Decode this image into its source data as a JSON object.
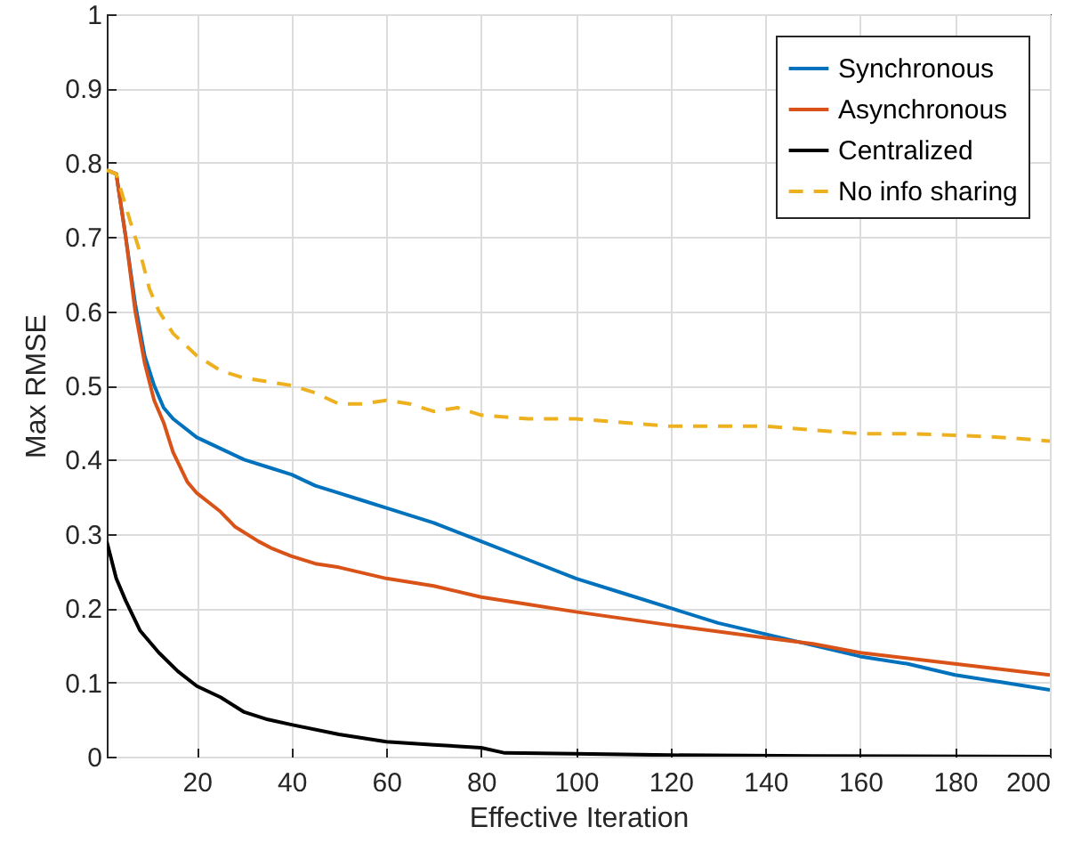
{
  "chart_data": {
    "type": "line",
    "xlabel": "Effective Iteration",
    "ylabel": "Max RMSE",
    "xlim": [
      1,
      200
    ],
    "xticks": [
      20,
      40,
      60,
      80,
      100,
      120,
      140,
      160,
      180,
      200
    ],
    "ylim": [
      0,
      1
    ],
    "yticks": [
      0,
      0.1,
      0.2,
      0.3,
      0.4,
      0.5,
      0.6,
      0.7,
      0.8,
      0.9,
      1
    ],
    "grid": true,
    "legend": "top right",
    "series": [
      {
        "name": "Synchronous",
        "color": "#0072bd",
        "line_style": "solid",
        "x": [
          1,
          3,
          5,
          7,
          9,
          11,
          13,
          15,
          20,
          25,
          30,
          35,
          40,
          45,
          50,
          55,
          60,
          70,
          80,
          90,
          100,
          110,
          120,
          130,
          140,
          150,
          160,
          170,
          180,
          190,
          200
        ],
        "values": [
          0.79,
          0.785,
          0.7,
          0.61,
          0.54,
          0.5,
          0.47,
          0.455,
          0.43,
          0.415,
          0.4,
          0.39,
          0.38,
          0.365,
          0.355,
          0.345,
          0.335,
          0.315,
          0.29,
          0.265,
          0.24,
          0.22,
          0.2,
          0.18,
          0.165,
          0.15,
          0.135,
          0.125,
          0.11,
          0.1,
          0.09
        ]
      },
      {
        "name": "Asynchronous",
        "color": "#d95319",
        "line_style": "solid",
        "x": [
          1,
          3,
          5,
          7,
          9,
          11,
          13,
          15,
          18,
          20,
          25,
          28,
          33,
          36,
          40,
          45,
          50,
          60,
          70,
          80,
          90,
          100,
          120,
          140,
          150,
          160,
          180,
          200
        ],
        "values": [
          0.79,
          0.785,
          0.7,
          0.6,
          0.53,
          0.48,
          0.45,
          0.41,
          0.37,
          0.355,
          0.33,
          0.31,
          0.29,
          0.28,
          0.27,
          0.26,
          0.255,
          0.24,
          0.23,
          0.215,
          0.205,
          0.195,
          0.177,
          0.16,
          0.152,
          0.14,
          0.125,
          0.11
        ]
      },
      {
        "name": "Centralized",
        "color": "#000000",
        "line_style": "solid",
        "x": [
          1,
          3,
          5,
          8,
          12,
          16,
          20,
          25,
          30,
          35,
          40,
          50,
          60,
          70,
          80,
          85,
          100,
          120,
          150,
          200
        ],
        "values": [
          0.29,
          0.24,
          0.21,
          0.17,
          0.14,
          0.115,
          0.095,
          0.08,
          0.06,
          0.05,
          0.043,
          0.03,
          0.02,
          0.016,
          0.012,
          0.005,
          0.004,
          0.002,
          0.001,
          0
        ]
      },
      {
        "name": "No info sharing",
        "color": "#edb120",
        "line_style": "dashed",
        "x": [
          1,
          3,
          6,
          8,
          10,
          12,
          15,
          20,
          25,
          30,
          35,
          40,
          45,
          50,
          55,
          60,
          65,
          70,
          75,
          80,
          90,
          100,
          110,
          120,
          130,
          140,
          150,
          160,
          170,
          180,
          190,
          200
        ],
        "values": [
          0.79,
          0.785,
          0.72,
          0.68,
          0.63,
          0.6,
          0.57,
          0.54,
          0.52,
          0.51,
          0.505,
          0.5,
          0.49,
          0.475,
          0.475,
          0.48,
          0.475,
          0.465,
          0.47,
          0.46,
          0.455,
          0.455,
          0.45,
          0.445,
          0.445,
          0.445,
          0.44,
          0.435,
          0.435,
          0.433,
          0.43,
          0.425
        ]
      }
    ]
  }
}
